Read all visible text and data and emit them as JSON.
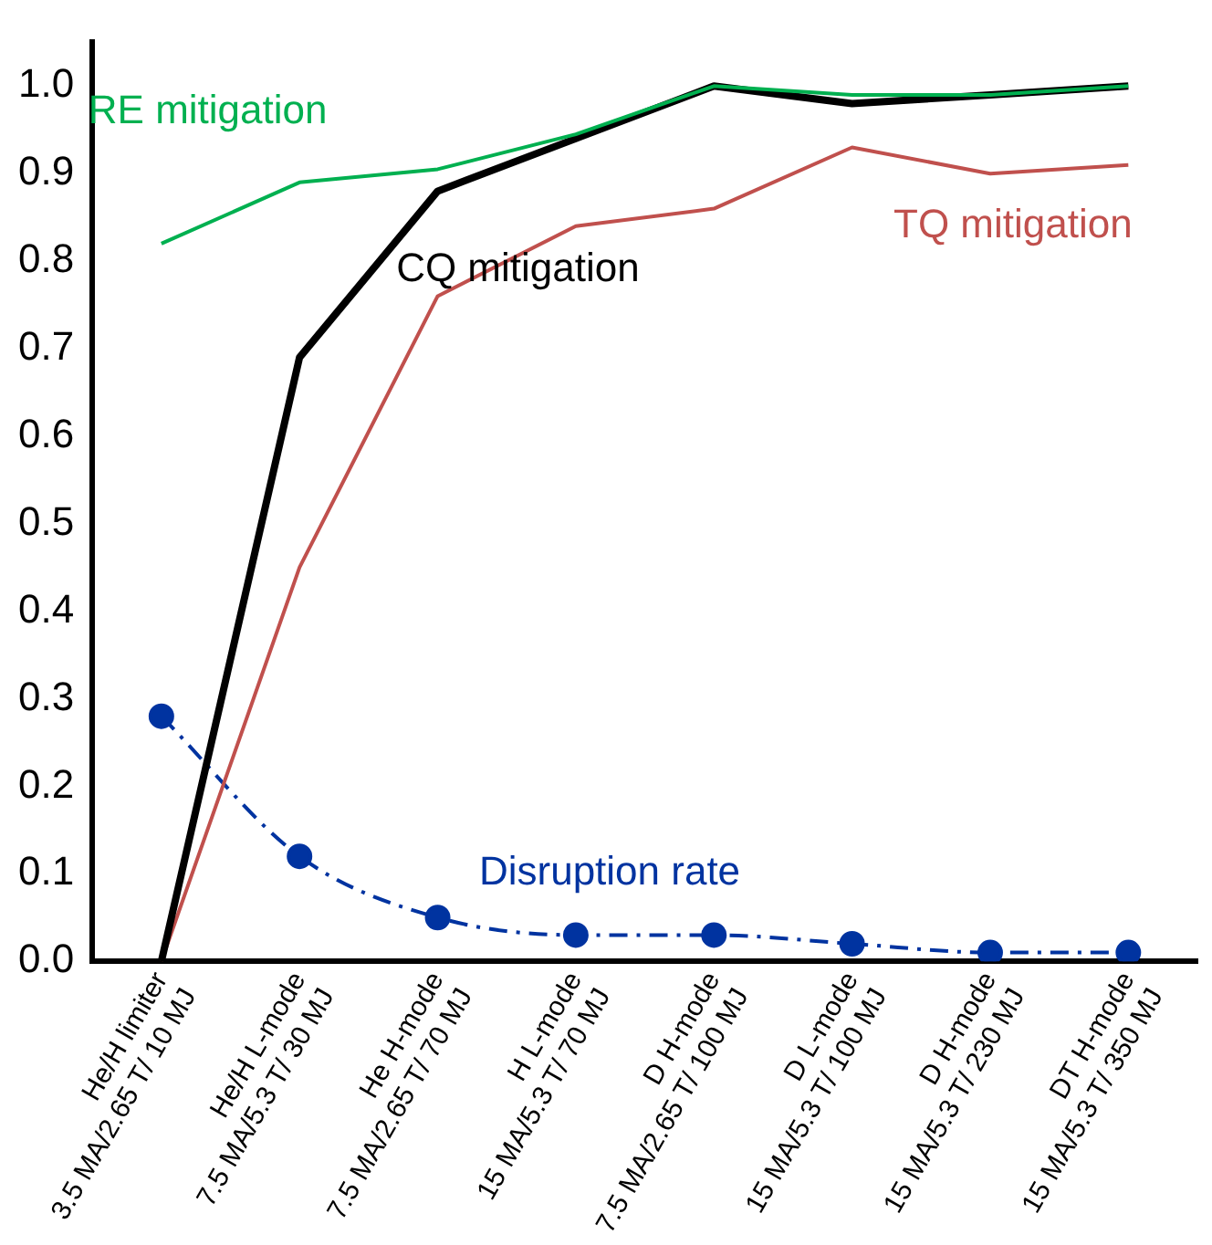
{
  "chart_data": {
    "type": "line",
    "categories": [
      "He/H limiter\n3.5 MA/2.65 T/ 10 MJ",
      "He/H L-mode\n7.5 MA/5.3 T/ 30 MJ",
      "He H-mode\n7.5 MA/2.65 T/ 70 MJ",
      "H L-mode\n15 MA/5.3 T/ 70 MJ",
      "D H-mode\n7.5 MA/2.65 T/ 100 MJ",
      "D L-mode\n15 MA/5.3 T/ 100 MJ",
      "D H-mode\n15 MA/5.3 T/ 230 MJ",
      "DT H-mode\n15 MA/5.3 T/ 350 MJ"
    ],
    "series": [
      {
        "name": "RE mitigation",
        "color": "#00b050",
        "marker": "none",
        "line_style": "solid",
        "values": [
          0.82,
          0.89,
          0.905,
          0.945,
          1.0,
          0.99,
          0.99,
          1.0
        ]
      },
      {
        "name": "CQ mitigation",
        "color": "#000000",
        "marker": "none",
        "line_style": "solid",
        "values": [
          0,
          0.69,
          0.88,
          0.94,
          1.0,
          0.98,
          0.99,
          1.0
        ]
      },
      {
        "name": "TQ mitigation",
        "color": "#c0504d",
        "marker": "none",
        "line_style": "solid",
        "values": [
          0,
          0.45,
          0.76,
          0.84,
          0.86,
          0.93,
          0.9,
          0.91
        ]
      },
      {
        "name": "Disruption rate",
        "color": "#0033a0",
        "marker": "circle",
        "line_style": "dashed",
        "values": [
          0.28,
          0.12,
          0.05,
          0.03,
          0.03,
          0.02,
          0.01,
          0.01
        ]
      }
    ],
    "ylim": [
      0,
      1.05
    ],
    "yticks": [
      {
        "value": 0,
        "label": "0.0"
      },
      0.1,
      0.2,
      0.3,
      0.4,
      0.5,
      0.6,
      0.7,
      0.8,
      0.9,
      {
        "value": 1,
        "label": "1.0"
      }
    ],
    "grid": false,
    "legend": false
  }
}
